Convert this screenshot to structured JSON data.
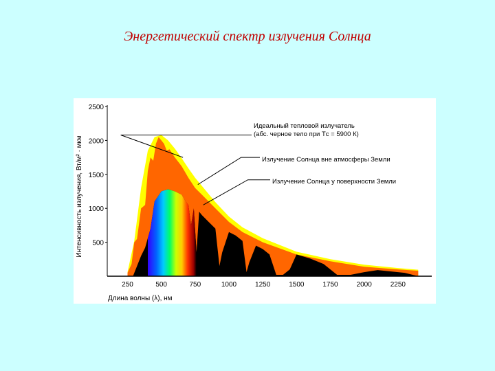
{
  "slide": {
    "title": "Энергетический спектр излучения Солнца"
  },
  "colors": {
    "background": "#ccffff",
    "title": "#c00000",
    "blackbody": "#ffff00",
    "outside_atmosphere": "#ff6600",
    "surface": "#000000"
  },
  "chart_data": {
    "type": "area",
    "xlabel": "Длина волны (λ), нм",
    "ylabel": "Интенсивность излучения, Вт/м² · мкм",
    "xlim": [
      100,
      2500
    ],
    "ylim": [
      0,
      2500
    ],
    "x_ticks": [
      250,
      500,
      750,
      1000,
      1250,
      1500,
      1750,
      2000,
      2250
    ],
    "y_ticks": [
      500,
      1000,
      1500,
      2000,
      2500
    ],
    "grid": false,
    "series": [
      {
        "name": "Идеальный тепловой излучатель (абс. черное тело при Tс = 5900 К)",
        "color": "#ffff00",
        "x": [
          250,
          300,
          350,
          400,
          450,
          500,
          550,
          600,
          650,
          700,
          750,
          800,
          900,
          1000,
          1100,
          1250,
          1500,
          1750,
          2000,
          2250,
          2400
        ],
        "y": [
          60,
          520,
          1300,
          1850,
          2050,
          2080,
          2000,
          1880,
          1740,
          1590,
          1450,
          1330,
          1090,
          880,
          720,
          560,
          360,
          250,
          170,
          120,
          95
        ]
      },
      {
        "name": "Излучение Солнца вне атмосферы Земли",
        "color": "#ff6600",
        "x": [
          250,
          280,
          300,
          320,
          350,
          380,
          400,
          420,
          440,
          460,
          480,
          500,
          520,
          540,
          560,
          600,
          650,
          700,
          750,
          800,
          900,
          1000,
          1100,
          1250,
          1500,
          1750,
          2000,
          2250,
          2400
        ],
        "y": [
          50,
          180,
          500,
          550,
          1000,
          1050,
          1550,
          1750,
          1700,
          1950,
          2050,
          2000,
          1950,
          1850,
          1870,
          1750,
          1620,
          1450,
          1300,
          1200,
          1000,
          800,
          650,
          500,
          320,
          220,
          140,
          100,
          80
        ]
      },
      {
        "name": "Излучение Солнца у поверхности Земли",
        "color": "#000000",
        "x": [
          290,
          320,
          350,
          380,
          420,
          450,
          500,
          550,
          600,
          650,
          680,
          700,
          720,
          740,
          760,
          780,
          800,
          850,
          900,
          930,
          950,
          1000,
          1050,
          1100,
          1130,
          1150,
          1200,
          1250,
          1300,
          1350,
          1400,
          1450,
          1500,
          1600,
          1700,
          1800,
          1900,
          2000,
          2100,
          2200,
          2300,
          2400
        ],
        "y": [
          0,
          150,
          300,
          420,
          700,
          1100,
          1250,
          1280,
          1250,
          1200,
          1100,
          1050,
          750,
          1000,
          350,
          950,
          900,
          800,
          700,
          150,
          350,
          650,
          600,
          520,
          60,
          200,
          450,
          400,
          320,
          20,
          20,
          100,
          320,
          260,
          180,
          20,
          20,
          60,
          90,
          70,
          50,
          0
        ]
      }
    ]
  }
}
